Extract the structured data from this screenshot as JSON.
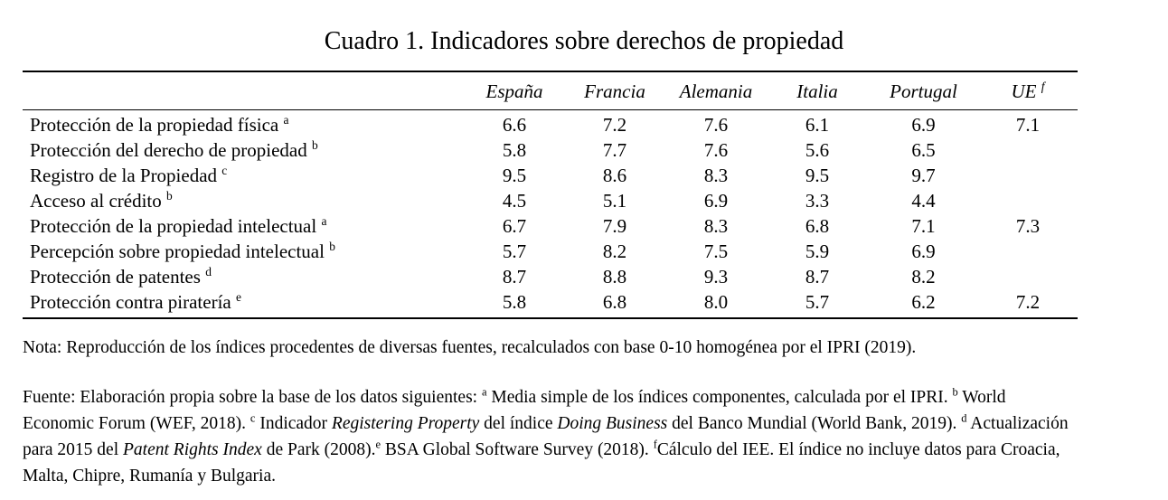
{
  "title": "Cuadro 1. Indicadores sobre derechos de propiedad",
  "table": {
    "columns": [
      {
        "label": "España",
        "sup": ""
      },
      {
        "label": "Francia",
        "sup": ""
      },
      {
        "label": "Alemania",
        "sup": ""
      },
      {
        "label": "Italia",
        "sup": ""
      },
      {
        "label": "Portugal",
        "sup": ""
      },
      {
        "label": "UE",
        "sup": "f"
      }
    ],
    "rows": [
      {
        "label": "Protección de la propiedad física",
        "sup": "a",
        "values": [
          "6.6",
          "7.2",
          "7.6",
          "6.1",
          "6.9",
          "7.1"
        ]
      },
      {
        "label": "Protección del derecho de propiedad",
        "sup": "b",
        "values": [
          "5.8",
          "7.7",
          "7.6",
          "5.6",
          "6.5",
          ""
        ]
      },
      {
        "label": "Registro de la Propiedad",
        "sup": "c",
        "values": [
          "9.5",
          "8.6",
          "8.3",
          "9.5",
          "9.7",
          ""
        ]
      },
      {
        "label": "Acceso al crédito",
        "sup": "b",
        "values": [
          "4.5",
          "5.1",
          "6.9",
          "3.3",
          "4.4",
          ""
        ]
      },
      {
        "label": "Protección de la propiedad intelectual",
        "sup": "a",
        "values": [
          "6.7",
          "7.9",
          "8.3",
          "6.8",
          "7.1",
          "7.3"
        ]
      },
      {
        "label": "Percepción sobre propiedad intelectual",
        "sup": "b",
        "values": [
          "5.7",
          "8.2",
          "7.5",
          "5.9",
          "6.9",
          ""
        ]
      },
      {
        "label": "Protección de patentes",
        "sup": "d",
        "values": [
          "8.7",
          "8.8",
          "9.3",
          "8.7",
          "8.2",
          ""
        ]
      },
      {
        "label": "Protección contra piratería",
        "sup": "e",
        "values": [
          "5.8",
          "6.8",
          "8.0",
          "5.7",
          "6.2",
          "7.2"
        ]
      }
    ]
  },
  "nota": "Nota: Reproducción de los índices procedentes de diversas fuentes, recalculados con base 0-10 homogénea por el IPRI (2019).",
  "fuente_segments": [
    {
      "t": "text",
      "v": "Fuente: Elaboración propia sobre la base de los datos siguientes: "
    },
    {
      "t": "sup",
      "v": "a"
    },
    {
      "t": "text",
      "v": " Media simple de los índices componentes, calculada por el IPRI. "
    },
    {
      "t": "sup",
      "v": "b"
    },
    {
      "t": "text",
      "v": " World Economic Forum (WEF, 2018). "
    },
    {
      "t": "sup",
      "v": "c"
    },
    {
      "t": "text",
      "v": " Indicador "
    },
    {
      "t": "i",
      "v": "Registering Property"
    },
    {
      "t": "text",
      "v": " del índice "
    },
    {
      "t": "i",
      "v": "Doing Business"
    },
    {
      "t": "text",
      "v": " del Banco Mundial (World Bank, 2019). "
    },
    {
      "t": "sup",
      "v": "d"
    },
    {
      "t": "text",
      "v": " Actualización para 2015 del "
    },
    {
      "t": "i",
      "v": "Patent Rights Index"
    },
    {
      "t": "text",
      "v": " de Park (2008)."
    },
    {
      "t": "sup",
      "v": "e"
    },
    {
      "t": "text",
      "v": " BSA Global Software Survey (2018). "
    },
    {
      "t": "sup",
      "v": "f"
    },
    {
      "t": "text",
      "v": "Cálculo del IEE. El índice no incluye datos para Croacia, Malta, Chipre, Rumanía y Bulgaria."
    }
  ]
}
